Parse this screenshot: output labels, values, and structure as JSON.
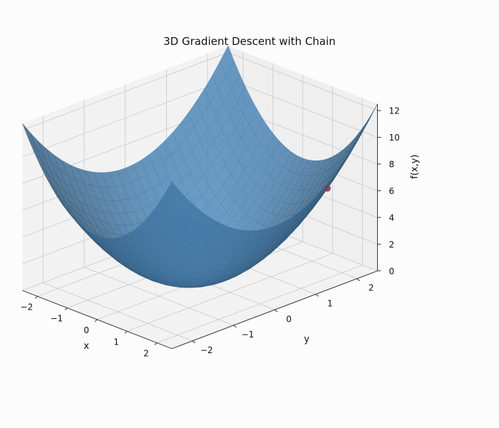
{
  "chart_data": {
    "type": "surface3d",
    "title": "3D Gradient Descent with Chain",
    "function": "x^2 + y^2",
    "xlabel": "x",
    "ylabel": "y",
    "zlabel": "f(x,y)",
    "xlim": [
      -2.5,
      2.5
    ],
    "ylim": [
      -2.5,
      2.5
    ],
    "zlim": [
      0,
      12.5
    ],
    "x_ticks": [
      -2,
      -1,
      0,
      1,
      2
    ],
    "y_ticks": [
      -2,
      -1,
      0,
      1,
      2
    ],
    "z_ticks": [
      0,
      2,
      4,
      6,
      8,
      10,
      12
    ],
    "grid": true,
    "surface_color": "#4a86b8",
    "point": {
      "x": 2.2,
      "y": 1.5,
      "z": 7.09,
      "color": "#7b3f5e"
    }
  }
}
